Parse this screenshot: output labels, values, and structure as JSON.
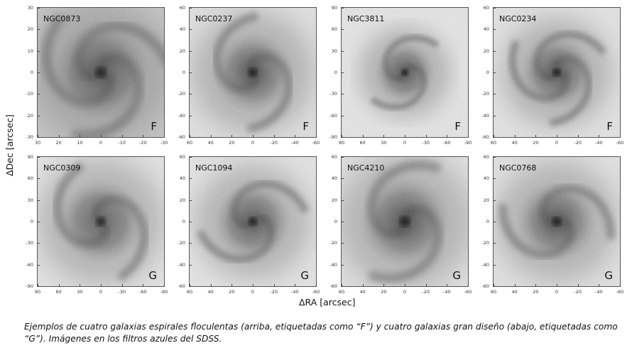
{
  "figure": {
    "xlabel": "ΔRA [arcsec]",
    "ylabel": "ΔDec [arcsec]",
    "caption": "Ejemplos de cuatro galaxias espirales floculentas (arriba, etiquetadas como “F”) y cuatro galaxias gran diseño (abajo, etiquetadas como “G”). Imágenes en los filtros azules del SDSS.",
    "colormap": "grayscale inverted"
  },
  "panels": [
    {
      "name": "NGC0873",
      "class": "F",
      "range": 30,
      "step": 10
    },
    {
      "name": "NGC0237",
      "class": "F",
      "range": 60,
      "step": 20
    },
    {
      "name": "NGC3811",
      "class": "F",
      "range": 90,
      "step": 30
    },
    {
      "name": "NGC0234",
      "class": "F",
      "range": 60,
      "step": 20
    },
    {
      "name": "NGC0309",
      "class": "G",
      "range": 90,
      "step": 30
    },
    {
      "name": "NGC1094",
      "class": "G",
      "range": 60,
      "step": 20
    },
    {
      "name": "NGC4210",
      "class": "G",
      "range": 60,
      "step": 20
    },
    {
      "name": "NGC0768",
      "class": "G",
      "range": 60,
      "step": 20
    }
  ]
}
